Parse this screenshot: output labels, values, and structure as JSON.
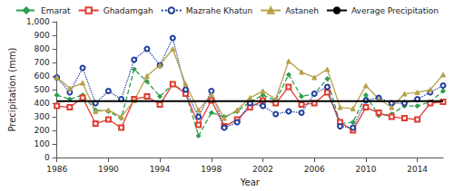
{
  "chart_data": {
    "type": "line",
    "x_label": "Year",
    "y_label": "Precipitation (mm)",
    "x": [
      1986,
      1987,
      1988,
      1989,
      1990,
      1991,
      1992,
      1993,
      1994,
      1995,
      1996,
      1997,
      1998,
      1999,
      2000,
      2001,
      2002,
      2003,
      2004,
      2005,
      2006,
      2007,
      2008,
      2009,
      2010,
      2011,
      2012,
      2013,
      2014,
      2015,
      2016
    ],
    "xlim": [
      1986,
      2016
    ],
    "xticks": [
      1986,
      1990,
      1994,
      1998,
      2002,
      2006,
      2010,
      2014
    ],
    "ylim": [
      0,
      1000
    ],
    "yticks": [
      0,
      100,
      200,
      300,
      400,
      500,
      600,
      700,
      800,
      900,
      1000
    ],
    "grid": false,
    "legend": "top",
    "series": [
      {
        "name": "Emarat",
        "color": "#2e9e4f",
        "marker": "diamond",
        "line_style": "dashed",
        "values": [
          460,
          430,
          460,
          350,
          340,
          290,
          650,
          560,
          450,
          540,
          480,
          160,
          330,
          300,
          340,
          410,
          460,
          420,
          610,
          450,
          470,
          580,
          250,
          260,
          460,
          310,
          320,
          380,
          380,
          410,
          490
        ]
      },
      {
        "name": "Ghadamgah",
        "color": "#e03c31",
        "marker": "emptyRect",
        "line_style": "solid",
        "values": [
          380,
          370,
          440,
          250,
          280,
          220,
          430,
          450,
          390,
          540,
          470,
          240,
          420,
          230,
          280,
          370,
          420,
          400,
          520,
          390,
          400,
          480,
          260,
          200,
          370,
          330,
          300,
          290,
          280,
          400,
          410
        ]
      },
      {
        "name": "Mazrahe Khatun",
        "color": "#1f3ea0",
        "marker": "emptyCircle",
        "line_style": "dotted",
        "values": [
          590,
          480,
          660,
          400,
          490,
          430,
          720,
          800,
          680,
          880,
          500,
          300,
          490,
          220,
          260,
          400,
          380,
          320,
          340,
          330,
          470,
          520,
          230,
          220,
          420,
          440,
          400,
          400,
          430,
          480,
          530
        ]
      },
      {
        "name": "Astaneh",
        "color": "#b8a04a",
        "marker": "triangle",
        "line_style": "solid",
        "values": [
          590,
          510,
          550,
          340,
          350,
          300,
          420,
          600,
          680,
          800,
          540,
          350,
          460,
          290,
          350,
          440,
          490,
          430,
          710,
          630,
          590,
          650,
          370,
          360,
          530,
          430,
          370,
          470,
          480,
          500,
          610
        ]
      },
      {
        "name": "Average Precipitation",
        "color": "#000000",
        "marker": "none",
        "line_style": "solid",
        "values": [
          415,
          415,
          415,
          415,
          415,
          415,
          415,
          415,
          415,
          415,
          415,
          415,
          415,
          415,
          415,
          415,
          415,
          415,
          415,
          415,
          415,
          415,
          415,
          415,
          415,
          415,
          415,
          415,
          415,
          415,
          415
        ]
      }
    ]
  }
}
